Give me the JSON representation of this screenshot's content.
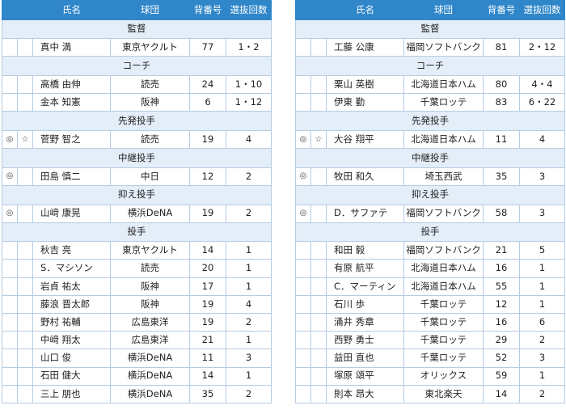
{
  "headers": {
    "name": "氏名",
    "team": "球団",
    "number": "背番号",
    "count": "選抜回数"
  },
  "left": {
    "groups": [
      {
        "label": "監督",
        "rows": [
          {
            "m1": "",
            "m2": "",
            "name": "真中 満",
            "team": "東京ヤクルト",
            "number": "77",
            "count": "1・2"
          }
        ]
      },
      {
        "label": "コーチ",
        "rows": [
          {
            "m1": "",
            "m2": "",
            "name": "高橋 由伸",
            "team": "読売",
            "number": "24",
            "count": "1・10"
          },
          {
            "m1": "",
            "m2": "",
            "name": "金本 知憲",
            "team": "阪神",
            "number": "6",
            "count": "1・12"
          }
        ]
      },
      {
        "label": "先発投手",
        "rows": [
          {
            "m1": "◎",
            "m2": "☆",
            "name": "菅野 智之",
            "team": "読売",
            "number": "19",
            "count": "4"
          }
        ]
      },
      {
        "label": "中継投手",
        "rows": [
          {
            "m1": "◎",
            "m2": "",
            "name": "田島 慎二",
            "team": "中日",
            "number": "12",
            "count": "2"
          }
        ]
      },
      {
        "label": "抑え投手",
        "rows": [
          {
            "m1": "◎",
            "m2": "",
            "name": "山﨑 康晃",
            "team": "横浜DeNA",
            "number": "19",
            "count": "2"
          }
        ]
      },
      {
        "label": "投手",
        "rows": [
          {
            "m1": "",
            "m2": "",
            "name": "秋吉 亮",
            "team": "東京ヤクルト",
            "number": "14",
            "count": "1"
          },
          {
            "m1": "",
            "m2": "",
            "name": "S．マシソン",
            "team": "読売",
            "number": "20",
            "count": "1"
          },
          {
            "m1": "",
            "m2": "",
            "name": "岩貞 祐太",
            "team": "阪神",
            "number": "17",
            "count": "1"
          },
          {
            "m1": "",
            "m2": "",
            "name": "藤浪 晋太郎",
            "team": "阪神",
            "number": "19",
            "count": "4"
          },
          {
            "m1": "",
            "m2": "",
            "name": "野村 祐輔",
            "team": "広島東洋",
            "number": "19",
            "count": "2"
          },
          {
            "m1": "",
            "m2": "",
            "name": "中﨑 翔太",
            "team": "広島東洋",
            "number": "21",
            "count": "1"
          },
          {
            "m1": "",
            "m2": "",
            "name": "山口 俊",
            "team": "横浜DeNA",
            "number": "11",
            "count": "3"
          },
          {
            "m1": "",
            "m2": "",
            "name": "石田 健大",
            "team": "横浜DeNA",
            "number": "14",
            "count": "1"
          },
          {
            "m1": "",
            "m2": "",
            "name": "三上 朋也",
            "team": "横浜DeNA",
            "number": "35",
            "count": "2"
          }
        ]
      }
    ]
  },
  "right": {
    "groups": [
      {
        "label": "監督",
        "rows": [
          {
            "m1": "",
            "m2": "",
            "name": "工藤 公康",
            "team": "福岡ソフトバンク",
            "number": "81",
            "count": "2・12"
          }
        ]
      },
      {
        "label": "コーチ",
        "rows": [
          {
            "m1": "",
            "m2": "",
            "name": "栗山 英樹",
            "team": "北海道日本ハム",
            "number": "80",
            "count": "4・4"
          },
          {
            "m1": "",
            "m2": "",
            "name": "伊東 勤",
            "team": "千葉ロッテ",
            "number": "83",
            "count": "6・22"
          }
        ]
      },
      {
        "label": "先発投手",
        "rows": [
          {
            "m1": "◎",
            "m2": "☆",
            "name": "大谷 翔平",
            "team": "北海道日本ハム",
            "number": "11",
            "count": "4"
          }
        ]
      },
      {
        "label": "中継投手",
        "rows": [
          {
            "m1": "◎",
            "m2": "",
            "name": "牧田 和久",
            "team": "埼玉西武",
            "number": "35",
            "count": "3"
          }
        ]
      },
      {
        "label": "抑え投手",
        "rows": [
          {
            "m1": "◎",
            "m2": "",
            "name": "D．サファテ",
            "team": "福岡ソフトバンク",
            "number": "58",
            "count": "3"
          }
        ]
      },
      {
        "label": "投手",
        "rows": [
          {
            "m1": "",
            "m2": "",
            "name": "和田 毅",
            "team": "福岡ソフトバンク",
            "number": "21",
            "count": "5"
          },
          {
            "m1": "",
            "m2": "",
            "name": "有原 航平",
            "team": "北海道日本ハム",
            "number": "16",
            "count": "1"
          },
          {
            "m1": "",
            "m2": "",
            "name": "C．マーティン",
            "team": "北海道日本ハム",
            "number": "55",
            "count": "1"
          },
          {
            "m1": "",
            "m2": "",
            "name": "石川 歩",
            "team": "千葉ロッテ",
            "number": "12",
            "count": "1"
          },
          {
            "m1": "",
            "m2": "",
            "name": "涌井 秀章",
            "team": "千葉ロッテ",
            "number": "16",
            "count": "6"
          },
          {
            "m1": "",
            "m2": "",
            "name": "西野 勇士",
            "team": "千葉ロッテ",
            "number": "29",
            "count": "2"
          },
          {
            "m1": "",
            "m2": "",
            "name": "益田 直也",
            "team": "千葉ロッテ",
            "number": "52",
            "count": "3"
          },
          {
            "m1": "",
            "m2": "",
            "name": "塚原 頌平",
            "team": "オリックス",
            "number": "59",
            "count": "1"
          },
          {
            "m1": "",
            "m2": "",
            "name": "則本 昂大",
            "team": "東北楽天",
            "number": "14",
            "count": "2"
          }
        ]
      }
    ]
  }
}
